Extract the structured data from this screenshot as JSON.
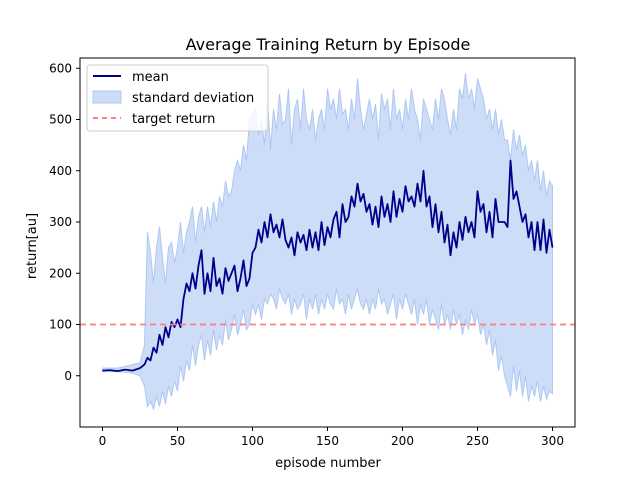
{
  "chart_data": {
    "type": "line",
    "title": "Average Training Return by Episode",
    "xlabel": "episode number",
    "ylabel": "return[au]",
    "xlim": [
      -15,
      315
    ],
    "ylim": [
      -100,
      620
    ],
    "x_ticks": [
      0,
      50,
      100,
      150,
      200,
      250,
      300
    ],
    "y_ticks": [
      0,
      100,
      200,
      300,
      400,
      500,
      600
    ],
    "grid": false,
    "legend_position": "top-left",
    "target_return": 100,
    "series": [
      {
        "name": "mean",
        "color": "#00008b",
        "x": [
          0,
          5,
          10,
          15,
          20,
          25,
          28,
          30,
          32,
          34,
          36,
          38,
          40,
          42,
          44,
          46,
          48,
          50,
          52,
          54,
          56,
          58,
          60,
          62,
          64,
          66,
          68,
          70,
          72,
          74,
          76,
          78,
          80,
          82,
          84,
          86,
          88,
          90,
          92,
          94,
          96,
          98,
          100,
          102,
          104,
          106,
          108,
          110,
          112,
          114,
          116,
          118,
          120,
          122,
          124,
          126,
          128,
          130,
          132,
          134,
          136,
          138,
          140,
          142,
          144,
          146,
          148,
          150,
          152,
          154,
          156,
          158,
          160,
          162,
          164,
          166,
          168,
          170,
          172,
          174,
          176,
          178,
          180,
          182,
          184,
          186,
          188,
          190,
          192,
          194,
          196,
          198,
          200,
          202,
          204,
          206,
          208,
          210,
          212,
          214,
          216,
          218,
          220,
          222,
          224,
          226,
          228,
          230,
          232,
          234,
          236,
          238,
          240,
          242,
          244,
          246,
          248,
          250,
          252,
          254,
          256,
          258,
          260,
          262,
          264,
          266,
          268,
          270,
          272,
          274,
          276,
          278,
          280,
          282,
          284,
          286,
          288,
          290,
          292,
          294,
          296,
          298,
          300
        ],
        "values": [
          10,
          11,
          9,
          12,
          10,
          15,
          22,
          35,
          30,
          55,
          45,
          80,
          60,
          95,
          75,
          105,
          95,
          110,
          95,
          150,
          180,
          165,
          200,
          170,
          215,
          245,
          160,
          200,
          165,
          230,
          175,
          190,
          160,
          210,
          185,
          200,
          215,
          165,
          190,
          225,
          175,
          190,
          240,
          250,
          285,
          260,
          300,
          270,
          315,
          280,
          295,
          270,
          305,
          265,
          250,
          270,
          235,
          280,
          260,
          275,
          245,
          285,
          250,
          280,
          245,
          300,
          255,
          290,
          270,
          305,
          320,
          270,
          335,
          300,
          310,
          350,
          330,
          375,
          340,
          355,
          320,
          335,
          295,
          330,
          290,
          350,
          310,
          335,
          300,
          360,
          310,
          345,
          320,
          370,
          340,
          350,
          330,
          375,
          340,
          400,
          330,
          350,
          290,
          335,
          280,
          320,
          260,
          295,
          235,
          280,
          250,
          300,
          265,
          310,
          280,
          300,
          270,
          360,
          320,
          335,
          280,
          320,
          270,
          345,
          300,
          300,
          300,
          290,
          420,
          345,
          360,
          330,
          300,
          315,
          270,
          300,
          245,
          300,
          245,
          305,
          240,
          285,
          250
        ]
      },
      {
        "name": "standard deviation",
        "color": "#aec7f2",
        "upper": [
          15,
          15,
          15,
          18,
          22,
          25,
          60,
          280,
          240,
          180,
          250,
          290,
          230,
          180,
          250,
          260,
          220,
          250,
          300,
          240,
          280,
          300,
          330,
          260,
          310,
          330,
          280,
          330,
          290,
          340,
          300,
          350,
          330,
          380,
          350,
          360,
          400,
          420,
          400,
          450,
          420,
          500,
          510,
          520,
          470,
          500,
          450,
          540,
          440,
          520,
          480,
          550,
          490,
          500,
          560,
          450,
          520,
          540,
          480,
          560,
          500,
          480,
          520,
          460,
          500,
          520,
          480,
          560,
          520,
          540,
          500,
          560,
          510,
          520,
          480,
          540,
          500,
          580,
          520,
          480,
          510,
          540,
          500,
          530,
          460,
          550,
          520,
          540,
          480,
          560,
          500,
          520,
          480,
          540,
          500,
          560,
          520,
          500,
          460,
          540,
          520,
          500,
          480,
          540,
          500,
          560,
          540,
          500,
          470,
          520,
          480,
          560,
          540,
          590,
          540,
          560,
          520,
          580,
          560,
          540,
          500,
          520,
          480,
          520,
          470,
          500,
          460,
          460,
          420,
          480,
          440,
          470,
          430,
          450,
          400,
          420,
          380,
          420,
          360,
          400,
          350,
          380,
          370
        ],
        "lower": [
          8,
          8,
          8,
          7,
          5,
          0,
          -20,
          -60,
          -50,
          -65,
          -40,
          -60,
          -30,
          -55,
          -20,
          -40,
          -10,
          -30,
          20,
          -10,
          30,
          10,
          60,
          20,
          60,
          80,
          30,
          70,
          40,
          90,
          50,
          80,
          60,
          110,
          70,
          90,
          120,
          80,
          100,
          130,
          90,
          100,
          140,
          120,
          140,
          110,
          150,
          140,
          160,
          150,
          130,
          170,
          150,
          140,
          160,
          120,
          150,
          130,
          140,
          160,
          110,
          150,
          130,
          160,
          120,
          150,
          130,
          160,
          140,
          130,
          170,
          140,
          150,
          120,
          160,
          130,
          150,
          170,
          140,
          130,
          150,
          120,
          150,
          130,
          170,
          140,
          150,
          120,
          140,
          160,
          110,
          150,
          130,
          160,
          140,
          120,
          150,
          100,
          140,
          120,
          150,
          100,
          130,
          110,
          90,
          140,
          100,
          120,
          90,
          130,
          100,
          120,
          80,
          110,
          90,
          130,
          100,
          120,
          80,
          100,
          60,
          90,
          40,
          70,
          10,
          40,
          0,
          -20,
          -40,
          20,
          -30,
          10,
          -40,
          0,
          -50,
          -20,
          -40,
          -10,
          -50,
          -20,
          -45,
          -30,
          -35
        ]
      },
      {
        "name": "target return",
        "color": "#ff7f7f",
        "values": [
          100
        ]
      }
    ]
  }
}
